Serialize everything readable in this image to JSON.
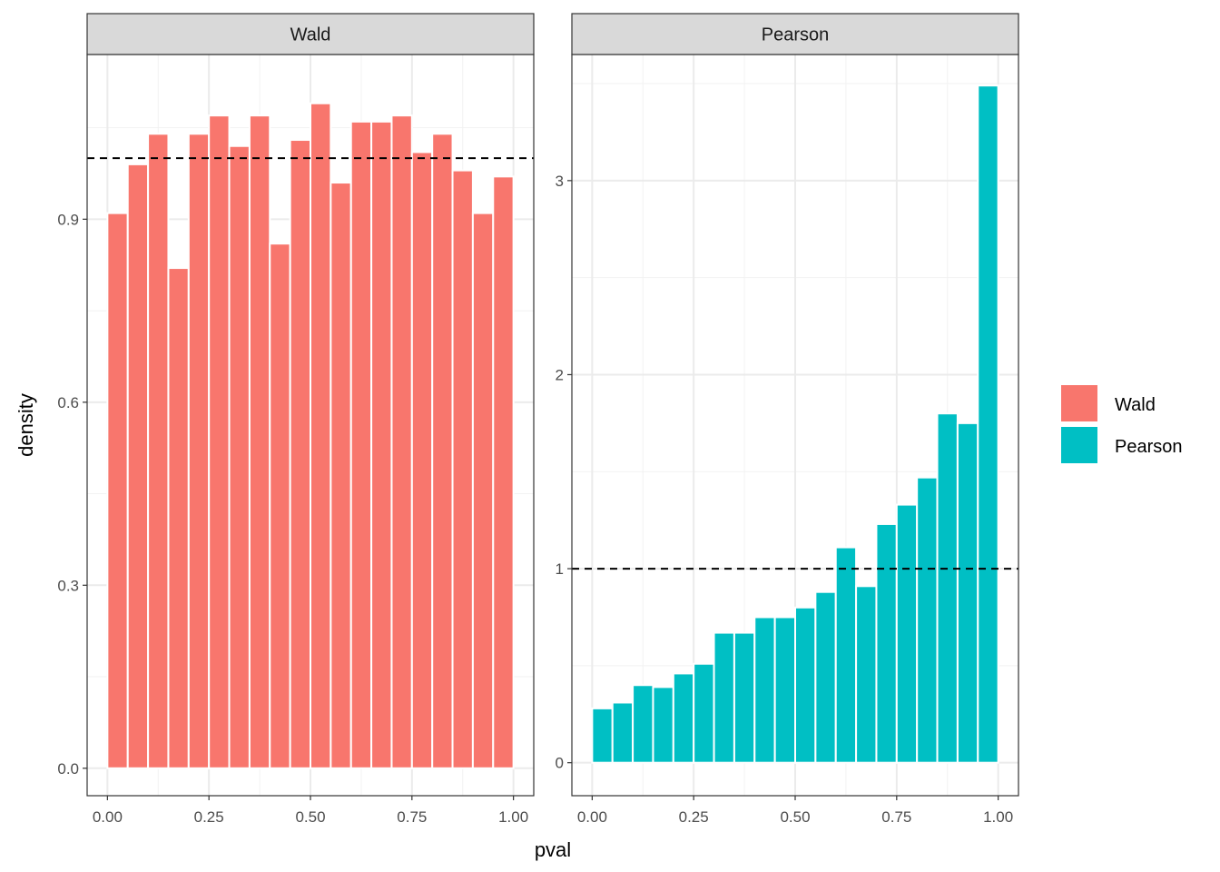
{
  "chart_data": {
    "type": "bar",
    "xlabel": "pval",
    "ylabel": "density",
    "grid": true,
    "legend_position": "right",
    "x_tick_labels": [
      "0.00",
      "0.25",
      "0.50",
      "0.75",
      "1.00"
    ],
    "x_ticks": [
      0,
      0.25,
      0.5,
      0.75,
      1.0
    ],
    "bin_centers": [
      0.025,
      0.075,
      0.125,
      0.175,
      0.225,
      0.275,
      0.325,
      0.375,
      0.425,
      0.475,
      0.525,
      0.575,
      0.625,
      0.675,
      0.725,
      0.775,
      0.825,
      0.875,
      0.925,
      0.975
    ],
    "bin_width": 0.05,
    "reference_line": 1,
    "panels": [
      {
        "name": "Wald",
        "color": "#F8766D",
        "ylim": [
          -0.045,
          1.17
        ],
        "y_ticks": [
          0.0,
          0.3,
          0.6,
          0.9
        ],
        "y_tick_labels": [
          "0.0",
          "0.3",
          "0.6",
          "0.9"
        ],
        "values": [
          0.91,
          0.99,
          1.04,
          0.82,
          1.04,
          1.07,
          1.02,
          1.07,
          0.86,
          1.03,
          1.09,
          0.96,
          1.06,
          1.06,
          1.07,
          1.01,
          1.04,
          0.98,
          0.91,
          0.97
        ]
      },
      {
        "name": "Pearson",
        "color": "#00BFC4",
        "ylim": [
          -0.17,
          3.65
        ],
        "y_ticks": [
          0,
          1,
          2,
          3
        ],
        "y_tick_labels": [
          "0",
          "1",
          "2",
          "3"
        ],
        "values": [
          0.28,
          0.31,
          0.4,
          0.39,
          0.46,
          0.51,
          0.67,
          0.67,
          0.75,
          0.75,
          0.8,
          0.88,
          1.11,
          0.91,
          1.23,
          1.33,
          1.47,
          1.8,
          1.75,
          3.49
        ]
      }
    ],
    "legend": [
      {
        "label": "Wald",
        "color": "#F8766D"
      },
      {
        "label": "Pearson",
        "color": "#00BFC4"
      }
    ]
  }
}
